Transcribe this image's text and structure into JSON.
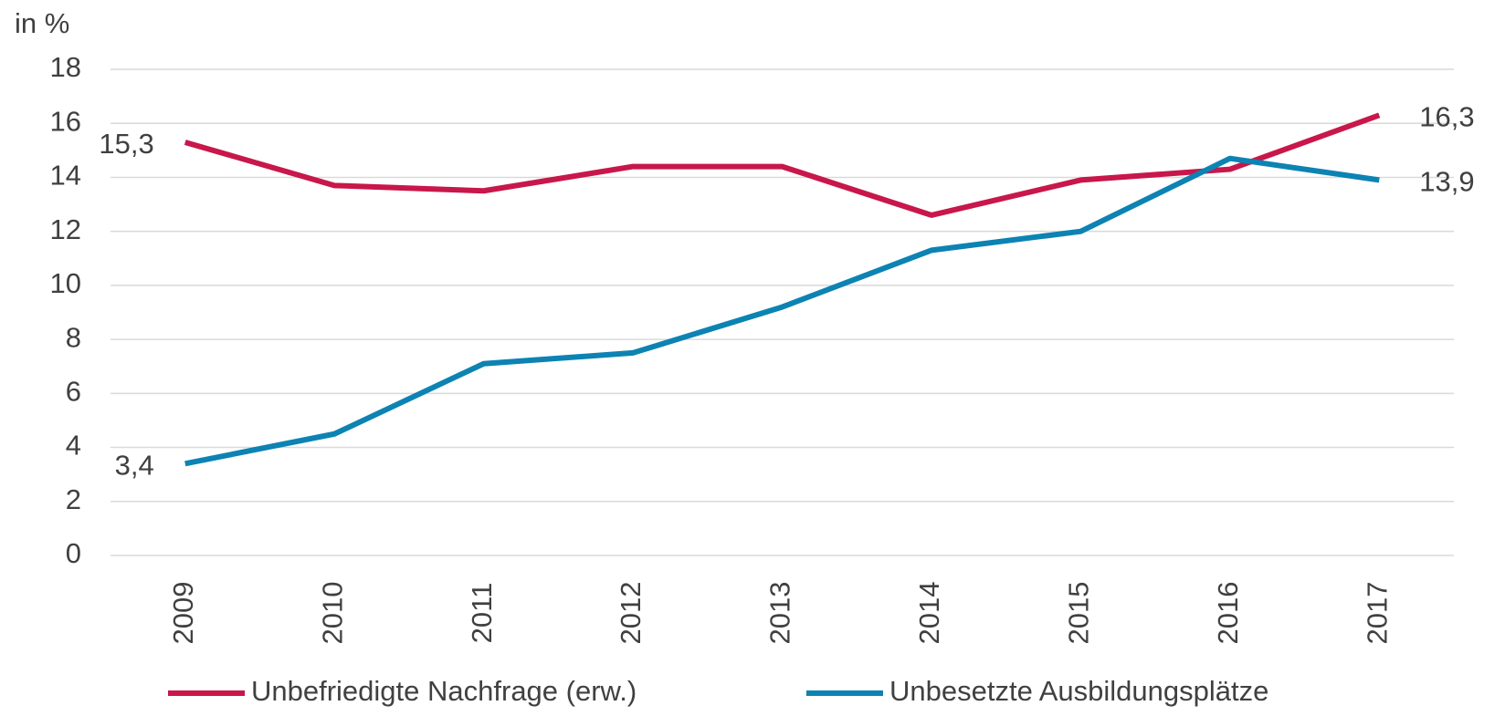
{
  "chart_data": {
    "type": "line",
    "y_label": "in %",
    "categories": [
      "2009",
      "2010",
      "2011",
      "2012",
      "2013",
      "2014",
      "2015",
      "2016",
      "2017"
    ],
    "series": [
      {
        "name": "Unbefriedigte Nachfrage (erw.)",
        "color": "#c8174a",
        "values": [
          15.3,
          13.7,
          13.5,
          14.4,
          14.4,
          12.6,
          13.9,
          14.3,
          16.3
        ],
        "value_labels": [
          "15,3",
          null,
          null,
          null,
          null,
          null,
          null,
          null,
          "16,3"
        ]
      },
      {
        "name": "Unbesetzte Ausbildungsplätze",
        "color": "#0c83b3",
        "values": [
          3.4,
          4.5,
          7.1,
          7.5,
          9.2,
          11.3,
          12.0,
          14.7,
          13.9
        ],
        "value_labels": [
          "3,4",
          null,
          null,
          null,
          null,
          null,
          null,
          null,
          "13,9"
        ]
      }
    ],
    "ylim": [
      0,
      18
    ],
    "yticks": [
      0,
      2,
      4,
      6,
      8,
      10,
      12,
      14,
      16,
      18
    ],
    "grid": true
  }
}
